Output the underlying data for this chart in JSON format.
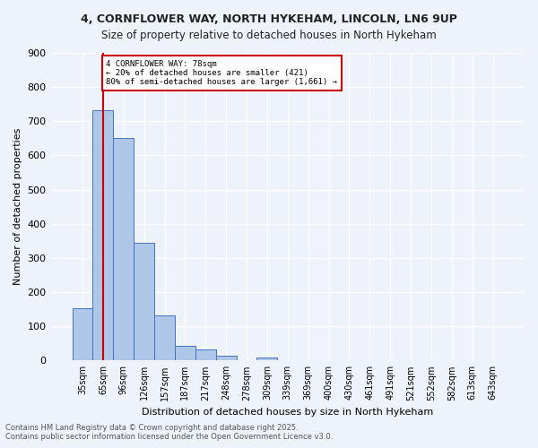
{
  "title_line1": "4, CORNFLOWER WAY, NORTH HYKEHAM, LINCOLN, LN6 9UP",
  "title_line2": "Size of property relative to detached houses in North Hykeham",
  "xlabel": "Distribution of detached houses by size in North Hykeham",
  "ylabel": "Number of detached properties",
  "bar_values": [
    152,
    733,
    651,
    345,
    133,
    43,
    31,
    14,
    0,
    8,
    0,
    0,
    0,
    0,
    0,
    0,
    0,
    0,
    0,
    0,
    0
  ],
  "bin_labels": [
    "35sqm",
    "65sqm",
    "96sqm",
    "126sqm",
    "157sqm",
    "187sqm",
    "217sqm",
    "248sqm",
    "278sqm",
    "309sqm",
    "339sqm",
    "369sqm",
    "400sqm",
    "430sqm",
    "461sqm",
    "491sqm",
    "521sqm",
    "552sqm",
    "582sqm",
    "613sqm",
    "643sqm"
  ],
  "bar_color": "#aec6e8",
  "bar_edge_color": "#4472c4",
  "background_color": "#eef2fb",
  "grid_color": "#ffffff",
  "vline_x": 1,
  "vline_color": "#cc0000",
  "annotation_text": "4 CORNFLOWER WAY: 78sqm\n← 20% of detached houses are smaller (421)\n80% of semi-detached houses are larger (1,661) →",
  "annotation_box_color": "#ffffff",
  "annotation_box_edge": "#cc0000",
  "ylim": [
    0,
    900
  ],
  "yticks": [
    0,
    100,
    200,
    300,
    400,
    500,
    600,
    700,
    800,
    900
  ],
  "footer_line1": "Contains HM Land Registry data © Crown copyright and database right 2025.",
  "footer_line2": "Contains public sector information licensed under the Open Government Licence v3.0."
}
